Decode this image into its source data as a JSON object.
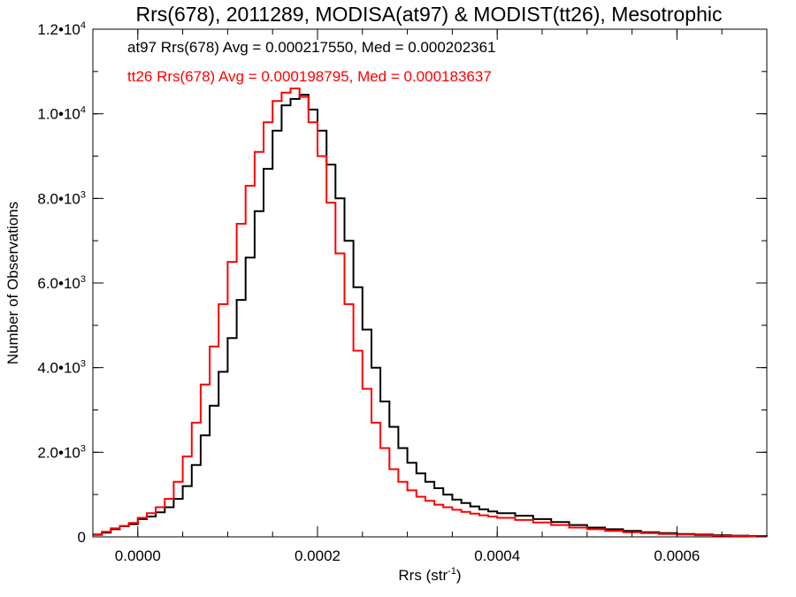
{
  "chart_data": {
    "type": "line",
    "title": "Rrs(678), 2011289, MODISA(at97) & MODIST(tt26), Mesotrophic",
    "xlabel_base": "Rrs (str",
    "xlabel_sup": "-1",
    "xlabel_close": ")",
    "ylabel": "Number of Observations",
    "xlim": [
      -5e-05,
      0.0007
    ],
    "ylim": [
      0,
      12000
    ],
    "x_ticks": [
      {
        "value": 0.0,
        "label": "0.0000"
      },
      {
        "value": 0.0002,
        "label": "0.0002"
      },
      {
        "value": 0.0004,
        "label": "0.0004"
      },
      {
        "value": 0.0006,
        "label": "0.0006"
      }
    ],
    "x_minor_step": 5e-05,
    "y_ticks": [
      {
        "value": 0,
        "base": "0",
        "exp": ""
      },
      {
        "value": 2000,
        "base": "2.0•10",
        "exp": "3"
      },
      {
        "value": 4000,
        "base": "4.0•10",
        "exp": "3"
      },
      {
        "value": 6000,
        "base": "6.0•10",
        "exp": "3"
      },
      {
        "value": 8000,
        "base": "8.0•10",
        "exp": "3"
      },
      {
        "value": 10000,
        "base": "1.0•10",
        "exp": "4"
      },
      {
        "value": 12000,
        "base": "1.2•10",
        "exp": "4"
      }
    ],
    "y_minor_step": 1000,
    "grid": false,
    "step": true,
    "series": [
      {
        "label": "at97 Rrs(678) Avg = 0.000217550, Med = 0.000202361",
        "color": "#000000",
        "x": [
          -5e-05,
          -4e-05,
          -3e-05,
          -2e-05,
          -1e-05,
          0.0,
          1e-05,
          2e-05,
          3e-05,
          4e-05,
          5e-05,
          6e-05,
          7e-05,
          8e-05,
          9e-05,
          0.0001,
          0.00011,
          0.00012,
          0.00013,
          0.00014,
          0.00015,
          0.00016,
          0.00017,
          0.00018,
          0.00019,
          0.0002,
          0.00021,
          0.00022,
          0.00023,
          0.00024,
          0.00025,
          0.00026,
          0.00027,
          0.00028,
          0.00029,
          0.0003,
          0.00031,
          0.00032,
          0.00033,
          0.00034,
          0.00035,
          0.00036,
          0.00037,
          0.00038,
          0.00039,
          0.0004,
          0.00042,
          0.00044,
          0.00046,
          0.00048,
          0.0005,
          0.00052,
          0.00054,
          0.00056,
          0.00058,
          0.0006,
          0.00062,
          0.00064,
          0.00066,
          0.00068,
          0.0007
        ],
        "y": [
          50,
          100,
          180,
          250,
          300,
          420,
          480,
          580,
          700,
          900,
          1200,
          1700,
          2400,
          3100,
          3900,
          4700,
          5600,
          6600,
          7700,
          8700,
          9600,
          10200,
          10350,
          10450,
          10100,
          9600,
          8800,
          8000,
          7000,
          5900,
          4900,
          4000,
          3200,
          2600,
          2100,
          1750,
          1500,
          1300,
          1150,
          1000,
          880,
          800,
          720,
          650,
          600,
          560,
          500,
          420,
          350,
          280,
          220,
          180,
          140,
          110,
          90,
          70,
          55,
          40,
          30,
          20,
          15
        ]
      },
      {
        "label": "tt26 Rrs(678) Avg = 0.000198795, Med = 0.000183637",
        "color": "#ff0000",
        "x": [
          -5e-05,
          -4e-05,
          -3e-05,
          -2e-05,
          -1e-05,
          0.0,
          1e-05,
          2e-05,
          3e-05,
          4e-05,
          5e-05,
          6e-05,
          7e-05,
          8e-05,
          9e-05,
          0.0001,
          0.00011,
          0.00012,
          0.00013,
          0.00014,
          0.00015,
          0.00016,
          0.00017,
          0.00018,
          0.00019,
          0.0002,
          0.00021,
          0.00022,
          0.00023,
          0.00024,
          0.00025,
          0.00026,
          0.00027,
          0.00028,
          0.00029,
          0.0003,
          0.00031,
          0.00032,
          0.00033,
          0.00034,
          0.00035,
          0.00036,
          0.00037,
          0.00038,
          0.00039,
          0.0004,
          0.00042,
          0.00044,
          0.00046,
          0.00048,
          0.0005,
          0.00052,
          0.00054,
          0.00056,
          0.00058,
          0.0006,
          0.00062,
          0.00064,
          0.00066,
          0.00068,
          0.0007
        ],
        "y": [
          60,
          120,
          200,
          260,
          330,
          450,
          560,
          700,
          900,
          1300,
          1900,
          2700,
          3600,
          4500,
          5500,
          6500,
          7400,
          8300,
          9100,
          9800,
          10300,
          10500,
          10600,
          10400,
          9800,
          9000,
          7900,
          6700,
          5500,
          4400,
          3500,
          2700,
          2100,
          1600,
          1300,
          1100,
          950,
          850,
          760,
          700,
          640,
          590,
          550,
          510,
          480,
          450,
          400,
          340,
          280,
          220,
          180,
          140,
          110,
          90,
          70,
          55,
          40,
          30,
          22,
          15,
          10
        ]
      }
    ]
  }
}
